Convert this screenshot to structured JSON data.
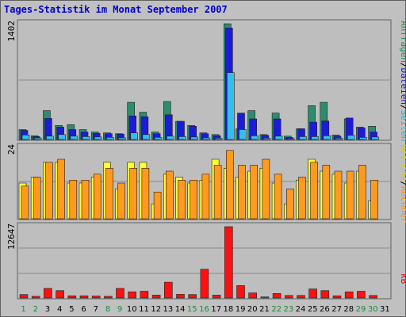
{
  "title": "Tages-Statistik im Monat September 2007",
  "colors": {
    "frame": "#C0C0C0",
    "plot": "#BEBEBE",
    "border": "#606060",
    "title": "#0000CC",
    "grid": "#8A8A8A",
    "anfragen": "#2E8B6F",
    "dateien": "#1C1CD6",
    "seiten": "#35BFE8",
    "besuche": "#FFFF33",
    "rechner": "#FF9A1F",
    "kb": "#FF1010",
    "day_weekday": "#000000",
    "day_weekend": "#1E8B3C"
  },
  "legend_right_top": [
    {
      "text": "Anfragen",
      "color": "#1E8B5A"
    },
    {
      "text": "/",
      "color": "#000000"
    },
    {
      "text": "Dateien",
      "color": "#1C1CD6"
    },
    {
      "text": "/",
      "color": "#000000"
    },
    {
      "text": "Seiten",
      "color": "#20B0E0"
    }
  ],
  "legend_right_mid": [
    {
      "text": "Besuche",
      "color": "#CCCC00"
    },
    {
      "text": "/",
      "color": "#000000"
    },
    {
      "text": "Rechner",
      "color": "#FF8C00"
    }
  ],
  "legend_right_bottom": [
    {
      "text": "kB",
      "color": "#FF0000"
    }
  ],
  "chart_data": {
    "type": "bar",
    "title": "Tages-Statistik im Monat September 2007",
    "categories": [
      "1",
      "2",
      "3",
      "4",
      "5",
      "6",
      "7",
      "8",
      "9",
      "10",
      "11",
      "12",
      "13",
      "14",
      "15",
      "16",
      "17",
      "18",
      "19",
      "20",
      "21",
      "22",
      "23",
      "24",
      "25",
      "26",
      "27",
      "28",
      "29",
      "30",
      "31"
    ],
    "weekend_days": [
      "1",
      "2",
      "8",
      "9",
      "15",
      "16",
      "22",
      "23",
      "29",
      "30"
    ],
    "panels": [
      {
        "name": "top",
        "ymax": 1402,
        "ymax_label": "1402",
        "series": [
          {
            "name": "Anfragen",
            "values": [
              120,
              45,
              350,
              170,
              180,
              120,
              90,
              80,
              70,
              450,
              330,
              90,
              460,
              220,
              170,
              80,
              60,
              1402,
              130,
              350,
              60,
              320,
              40,
              130,
              410,
              450,
              55,
              250,
              150,
              160,
              0
            ]
          },
          {
            "name": "Dateien",
            "values": [
              110,
              35,
              255,
              150,
              120,
              90,
              75,
              70,
              65,
              285,
              275,
              70,
              300,
              220,
              160,
              70,
              45,
              1350,
              320,
              250,
              50,
              250,
              25,
              130,
              210,
              225,
              40,
              260,
              140,
              90,
              0
            ]
          },
          {
            "name": "Seiten",
            "values": [
              55,
              18,
              40,
              60,
              40,
              35,
              30,
              25,
              20,
              80,
              60,
              25,
              40,
              35,
              30,
              20,
              15,
              810,
              120,
              45,
              15,
              40,
              10,
              35,
              35,
              45,
              15,
              50,
              25,
              30,
              0
            ]
          }
        ]
      },
      {
        "name": "middle",
        "ymax": 24,
        "ymax_label": "24",
        "series": [
          {
            "name": "Besuche",
            "values": [
              12,
              14,
              19,
              19,
              12,
              12,
              14,
              19,
              10,
              19,
              19,
              5,
              15,
              14,
              12,
              13,
              20,
              17,
              14,
              16,
              17,
              12,
              5,
              13,
              20,
              16,
              15,
              12,
              16,
              6,
              0
            ]
          },
          {
            "name": "Rechner",
            "values": [
              11,
              14,
              19,
              20,
              13,
              13,
              15,
              17,
              12,
              17,
              17,
              9,
              16,
              13,
              13,
              15,
              18,
              23,
              18,
              18,
              20,
              15,
              10,
              14,
              19,
              18,
              16,
              16,
              18,
              13,
              0
            ]
          }
        ]
      },
      {
        "name": "bottom",
        "ymax": 12647,
        "ymax_label": "12647",
        "series": [
          {
            "name": "kB",
            "values": [
              600,
              300,
              1700,
              1300,
              400,
              400,
              350,
              300,
              1700,
              1100,
              1200,
              500,
              2800,
              650,
              600,
              5100,
              500,
              12647,
              2200,
              900,
              200,
              800,
              450,
              450,
              1600,
              1300,
              400,
              1100,
              1200,
              450,
              0
            ]
          }
        ]
      }
    ]
  }
}
